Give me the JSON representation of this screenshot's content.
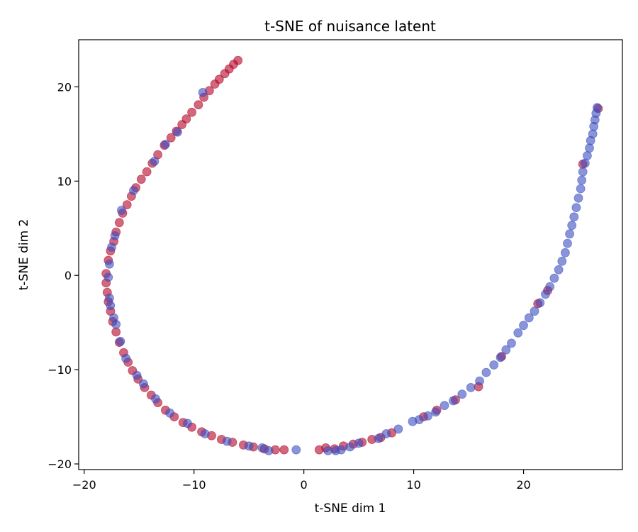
{
  "chart_data": {
    "type": "scatter",
    "title": "t-SNE of nuisance latent",
    "xlabel": "t-SNE dim 1",
    "ylabel": "t-SNE dim 2",
    "xlim": [
      -20.5,
      29
    ],
    "ylim": [
      -20.6,
      25
    ],
    "xticks": [
      -20,
      -10,
      0,
      10,
      20
    ],
    "yticks": [
      -20,
      -10,
      0,
      10,
      20
    ],
    "xtick_labels": [
      "−20",
      "−10",
      "0",
      "10",
      "20"
    ],
    "ytick_labels": [
      "−20",
      "−10",
      "0",
      "10",
      "20"
    ],
    "grid": false,
    "legend": "none",
    "marker_alpha": 0.6,
    "series": [
      {
        "color": "#b40426",
        "points": [
          [
            -6.0,
            22.8
          ],
          [
            -6.4,
            22.4
          ],
          [
            -6.8,
            21.9
          ],
          [
            -7.2,
            21.4
          ],
          [
            -7.7,
            20.8
          ],
          [
            -8.1,
            20.3
          ],
          [
            -8.6,
            19.6
          ],
          [
            -9.1,
            18.9
          ],
          [
            -9.6,
            18.1
          ],
          [
            -10.2,
            17.3
          ],
          [
            -10.7,
            16.6
          ],
          [
            -11.1,
            16.0
          ],
          [
            -11.6,
            15.3
          ],
          [
            -12.1,
            14.6
          ],
          [
            -12.7,
            13.8
          ],
          [
            -13.3,
            12.8
          ],
          [
            -13.8,
            11.9
          ],
          [
            -14.3,
            11.0
          ],
          [
            -14.8,
            10.2
          ],
          [
            -15.3,
            9.3
          ],
          [
            -15.7,
            8.4
          ],
          [
            -16.1,
            7.5
          ],
          [
            -16.5,
            6.6
          ],
          [
            -16.8,
            5.6
          ],
          [
            -17.1,
            4.6
          ],
          [
            -17.3,
            3.6
          ],
          [
            -17.6,
            2.6
          ],
          [
            -17.8,
            1.6
          ],
          [
            -18.0,
            0.2
          ],
          [
            -18.0,
            -0.8
          ],
          [
            -17.9,
            -1.8
          ],
          [
            -17.8,
            -2.8
          ],
          [
            -17.6,
            -3.8
          ],
          [
            -17.4,
            -4.9
          ],
          [
            -17.1,
            -6.0
          ],
          [
            -16.8,
            -7.1
          ],
          [
            -16.4,
            -8.2
          ],
          [
            -16.0,
            -9.2
          ],
          [
            -15.6,
            -10.1
          ],
          [
            -15.1,
            -11.0
          ],
          [
            -14.5,
            -11.9
          ],
          [
            -13.9,
            -12.7
          ],
          [
            -13.3,
            -13.5
          ],
          [
            -12.6,
            -14.3
          ],
          [
            -11.8,
            -15.0
          ],
          [
            -11.0,
            -15.6
          ],
          [
            -10.2,
            -16.1
          ],
          [
            -9.3,
            -16.6
          ],
          [
            -8.4,
            -17.0
          ],
          [
            -7.5,
            -17.4
          ],
          [
            -6.5,
            -17.7
          ],
          [
            -5.5,
            -18.0
          ],
          [
            -4.6,
            -18.2
          ],
          [
            -3.6,
            -18.4
          ],
          [
            -2.6,
            -18.5
          ],
          [
            -1.8,
            -18.5
          ],
          [
            1.4,
            -18.5
          ],
          [
            2.0,
            -18.3
          ],
          [
            2.8,
            -18.4
          ],
          [
            3.6,
            -18.1
          ],
          [
            4.5,
            -17.9
          ],
          [
            5.3,
            -17.7
          ],
          [
            6.2,
            -17.4
          ],
          [
            7.0,
            -17.2
          ],
          [
            8.0,
            -16.7
          ],
          [
            10.9,
            -15.0
          ],
          [
            12.1,
            -14.3
          ],
          [
            13.8,
            -13.2
          ],
          [
            15.9,
            -11.8
          ],
          [
            18.0,
            -8.6
          ],
          [
            21.3,
            -3.0
          ],
          [
            22.2,
            -1.6
          ],
          [
            25.4,
            11.8
          ],
          [
            26.8,
            17.7
          ]
        ]
      },
      {
        "color": "#3b4cc0",
        "points": [
          [
            -9.2,
            19.4
          ],
          [
            -11.5,
            15.2
          ],
          [
            -12.6,
            13.9
          ],
          [
            -13.6,
            12.1
          ],
          [
            -15.5,
            9.0
          ],
          [
            -16.6,
            6.9
          ],
          [
            -17.2,
            4.2
          ],
          [
            -17.5,
            3.0
          ],
          [
            -17.7,
            1.2
          ],
          [
            -17.8,
            -0.2
          ],
          [
            -17.7,
            -2.4
          ],
          [
            -17.6,
            -3.2
          ],
          [
            -17.3,
            -4.5
          ],
          [
            -17.1,
            -5.2
          ],
          [
            -16.7,
            -7.0
          ],
          [
            -16.2,
            -8.8
          ],
          [
            -15.2,
            -10.6
          ],
          [
            -14.6,
            -11.5
          ],
          [
            -13.5,
            -13.1
          ],
          [
            -12.2,
            -14.6
          ],
          [
            -10.6,
            -15.7
          ],
          [
            -9.0,
            -16.8
          ],
          [
            -7.0,
            -17.6
          ],
          [
            -5.0,
            -18.1
          ],
          [
            -3.8,
            -18.3
          ],
          [
            -3.2,
            -18.6
          ],
          [
            -0.7,
            -18.5
          ],
          [
            2.2,
            -18.6
          ],
          [
            2.9,
            -18.6
          ],
          [
            3.4,
            -18.5
          ],
          [
            4.2,
            -18.2
          ],
          [
            5.0,
            -17.8
          ],
          [
            6.8,
            -17.3
          ],
          [
            7.5,
            -16.8
          ],
          [
            8.6,
            -16.3
          ],
          [
            9.9,
            -15.5
          ],
          [
            10.5,
            -15.3
          ],
          [
            11.3,
            -14.9
          ],
          [
            12.0,
            -14.5
          ],
          [
            12.8,
            -13.8
          ],
          [
            13.6,
            -13.3
          ],
          [
            14.4,
            -12.6
          ],
          [
            15.2,
            -11.9
          ],
          [
            16.0,
            -11.2
          ],
          [
            16.6,
            -10.3
          ],
          [
            17.3,
            -9.5
          ],
          [
            17.9,
            -8.7
          ],
          [
            18.4,
            -7.9
          ],
          [
            18.9,
            -7.2
          ],
          [
            19.5,
            -6.1
          ],
          [
            20.0,
            -5.3
          ],
          [
            20.5,
            -4.5
          ],
          [
            21.0,
            -3.8
          ],
          [
            21.5,
            -2.9
          ],
          [
            22.0,
            -2.0
          ],
          [
            22.4,
            -1.2
          ],
          [
            22.8,
            -0.3
          ],
          [
            23.2,
            0.6
          ],
          [
            23.5,
            1.5
          ],
          [
            23.8,
            2.4
          ],
          [
            24.0,
            3.4
          ],
          [
            24.2,
            4.4
          ],
          [
            24.4,
            5.3
          ],
          [
            24.6,
            6.2
          ],
          [
            24.8,
            7.2
          ],
          [
            25.0,
            8.2
          ],
          [
            25.2,
            9.2
          ],
          [
            25.3,
            10.1
          ],
          [
            25.4,
            11.0
          ],
          [
            25.6,
            11.9
          ],
          [
            25.8,
            12.7
          ],
          [
            26.0,
            13.5
          ],
          [
            26.1,
            14.3
          ],
          [
            26.3,
            15.0
          ],
          [
            26.4,
            15.8
          ],
          [
            26.5,
            16.5
          ],
          [
            26.6,
            17.2
          ],
          [
            26.7,
            17.8
          ]
        ]
      }
    ]
  }
}
